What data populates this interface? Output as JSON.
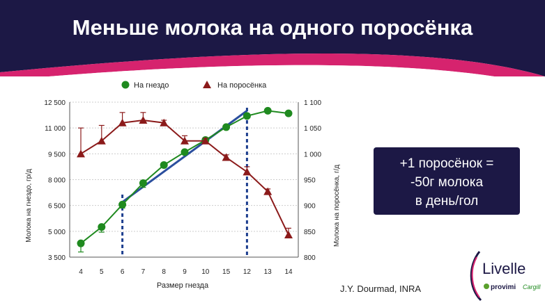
{
  "slide": {
    "title": "Меньше молока на одного поросёнка",
    "callout": [
      "+1 поросёнок =",
      "-50г молока",
      "в день/гол"
    ],
    "source": "J.Y. Dourmad, INRA",
    "colors": {
      "navy": "#1c1845",
      "magenta": "#d6236e",
      "green": "#1f8a1f",
      "darkred": "#8b1a1a",
      "blue": "#2b4f9e"
    }
  },
  "logo": {
    "brand": "Livelle",
    "sub1": "provimi",
    "sub2": "Cargill"
  },
  "chart_data": {
    "type": "line",
    "categories": [
      "4",
      "5",
      "6",
      "7",
      "8",
      "9",
      "10",
      "15",
      "12",
      "13",
      "14"
    ],
    "xlabel": "Размер гнезда",
    "ylabel_left": "Молока на гнездо, гр/д",
    "ylabel_right": "Молока на поросёнка, г/д",
    "y_left": {
      "min": 3500,
      "max": 12500,
      "ticks": [
        "3 500",
        "5 000",
        "6 500",
        "8 000",
        "9 500",
        "11 000",
        "12 500"
      ]
    },
    "y_right": {
      "min": 800,
      "max": 1100,
      "ticks": [
        "800",
        "850",
        "900",
        "950",
        "1 000",
        "1 050",
        "1 100"
      ]
    },
    "legend_position": "top",
    "grid": true,
    "series": [
      {
        "name": "На гнездо",
        "axis": "left",
        "color": "#1f8a1f",
        "marker": "circle",
        "values": [
          4300,
          5250,
          6550,
          7800,
          8850,
          9600,
          10300,
          11050,
          11700,
          12000,
          11850
        ],
        "err_low": [
          500,
          300,
          200,
          250,
          0,
          0,
          0,
          0,
          0,
          0,
          0
        ],
        "err_high": [
          0,
          0,
          0,
          0,
          0,
          0,
          0,
          0,
          0,
          0,
          0
        ]
      },
      {
        "name": "На поросёнка",
        "axis": "right",
        "color": "#8b1a1a",
        "marker": "triangle",
        "values": [
          1000,
          1025,
          1060,
          1065,
          1060,
          1025,
          1025,
          993,
          965,
          927,
          843
        ],
        "err_low": [
          0,
          0,
          0,
          0,
          0,
          0,
          0,
          0,
          0,
          0,
          0
        ],
        "err_high": [
          50,
          30,
          20,
          15,
          5,
          10,
          5,
          5,
          10,
          5,
          13
        ]
      }
    ],
    "trend_line": {
      "axis": "left",
      "from": {
        "x": "6",
        "y": 6700
      },
      "to": {
        "x": "12",
        "y": 12000
      },
      "color": "#2b4f9e"
    },
    "reference_lines": [
      "6",
      "12"
    ]
  }
}
